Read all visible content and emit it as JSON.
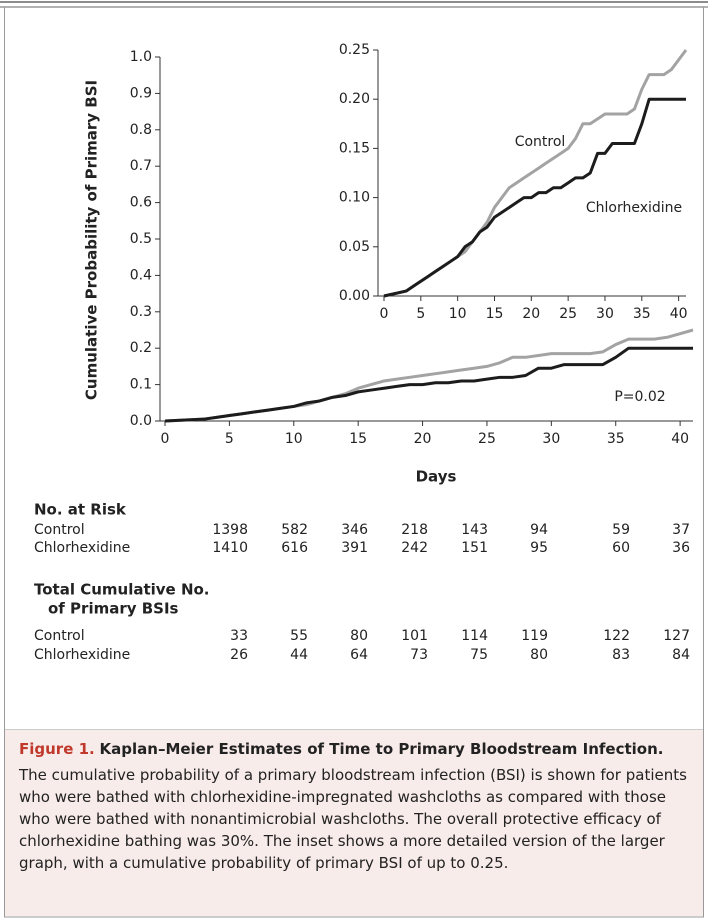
{
  "chart_data": [
    {
      "type": "line",
      "ylabel": "Cumulative Probability of Primary BSI",
      "xlabel": "Days",
      "x": [
        0,
        3,
        4,
        5,
        6,
        7,
        8,
        9,
        10,
        11,
        12,
        13,
        14,
        15,
        16,
        17,
        18,
        19,
        20,
        21,
        22,
        23,
        24,
        25,
        26,
        27,
        28,
        29,
        30,
        31,
        32,
        33,
        34,
        35,
        36,
        37,
        38,
        39,
        40,
        41
      ],
      "series": [
        {
          "name": "Control",
          "color": "#a3a3a3",
          "values": [
            0,
            0.005,
            0.01,
            0.015,
            0.02,
            0.025,
            0.03,
            0.035,
            0.04,
            0.045,
            0.055,
            0.065,
            0.075,
            0.09,
            0.1,
            0.11,
            0.115,
            0.12,
            0.125,
            0.13,
            0.135,
            0.14,
            0.145,
            0.15,
            0.16,
            0.175,
            0.175,
            0.18,
            0.185,
            0.185,
            0.185,
            0.185,
            0.19,
            0.21,
            0.225,
            0.225,
            0.225,
            0.23,
            0.24,
            0.25
          ]
        },
        {
          "name": "Chlorhexidine",
          "color": "#1c1c1c",
          "values": [
            0,
            0.005,
            0.01,
            0.015,
            0.02,
            0.025,
            0.03,
            0.035,
            0.04,
            0.05,
            0.055,
            0.065,
            0.07,
            0.08,
            0.085,
            0.09,
            0.095,
            0.1,
            0.1,
            0.105,
            0.105,
            0.11,
            0.11,
            0.115,
            0.12,
            0.12,
            0.125,
            0.145,
            0.145,
            0.155,
            0.155,
            0.155,
            0.155,
            0.175,
            0.2,
            0.2,
            0.2,
            0.2,
            0.2,
            0.2
          ]
        }
      ],
      "xlim": [
        0,
        41
      ],
      "xticks": [
        0,
        5,
        10,
        15,
        20,
        25,
        30,
        35,
        40
      ],
      "ylim": [
        0,
        1
      ],
      "yticks": [
        {
          "value": 0,
          "label": "0.0"
        },
        0.1,
        0.2,
        0.3,
        0.4,
        0.5,
        0.6,
        0.7,
        0.8,
        0.9,
        {
          "value": 1,
          "label": "1.0"
        }
      ],
      "annotations": [
        {
          "text": "P=0.02"
        }
      ]
    },
    {
      "type": "line",
      "x": [
        0,
        3,
        4,
        5,
        6,
        7,
        8,
        9,
        10,
        11,
        12,
        13,
        14,
        15,
        16,
        17,
        18,
        19,
        20,
        21,
        22,
        23,
        24,
        25,
        26,
        27,
        28,
        29,
        30,
        31,
        32,
        33,
        34,
        35,
        36,
        37,
        38,
        39,
        40,
        41
      ],
      "series": [
        {
          "name": "Control",
          "color": "#a3a3a3",
          "values": [
            0,
            0.005,
            0.01,
            0.015,
            0.02,
            0.025,
            0.03,
            0.035,
            0.04,
            0.045,
            0.055,
            0.065,
            0.075,
            0.09,
            0.1,
            0.11,
            0.115,
            0.12,
            0.125,
            0.13,
            0.135,
            0.14,
            0.145,
            0.15,
            0.16,
            0.175,
            0.175,
            0.18,
            0.185,
            0.185,
            0.185,
            0.185,
            0.19,
            0.21,
            0.225,
            0.225,
            0.225,
            0.23,
            0.24,
            0.25
          ]
        },
        {
          "name": "Chlorhexidine",
          "color": "#1c1c1c",
          "values": [
            0,
            0.005,
            0.01,
            0.015,
            0.02,
            0.025,
            0.03,
            0.035,
            0.04,
            0.05,
            0.055,
            0.065,
            0.07,
            0.08,
            0.085,
            0.09,
            0.095,
            0.1,
            0.1,
            0.105,
            0.105,
            0.11,
            0.11,
            0.115,
            0.12,
            0.12,
            0.125,
            0.145,
            0.145,
            0.155,
            0.155,
            0.155,
            0.155,
            0.175,
            0.2,
            0.2,
            0.2,
            0.2,
            0.2,
            0.2
          ]
        }
      ],
      "xlim": [
        0,
        41
      ],
      "xticks": [
        0,
        5,
        10,
        15,
        20,
        25,
        30,
        35,
        40
      ],
      "ylim": [
        0,
        0.25
      ],
      "yticks": [
        {
          "value": 0,
          "label": "0.00"
        },
        0.05,
        {
          "value": 0.1,
          "label": "0.10"
        },
        0.15,
        {
          "value": 0.2,
          "label": "0.20"
        },
        0.25
      ]
    }
  ],
  "risk_table": {
    "title": "No. at Risk",
    "rows": [
      {
        "label": "Control",
        "values": [
          1398,
          582,
          346,
          218,
          143,
          94,
          59,
          37
        ]
      },
      {
        "label": "Chlorhexidine",
        "values": [
          1410,
          616,
          391,
          242,
          151,
          95,
          60,
          36
        ]
      }
    ]
  },
  "bsi_table": {
    "title_lines": [
      "Total Cumulative No.",
      "of Primary BSIs"
    ],
    "rows": [
      {
        "label": "Control",
        "values": [
          33,
          55,
          80,
          101,
          114,
          119,
          122,
          127
        ]
      },
      {
        "label": "Chlorhexidine",
        "values": [
          26,
          44,
          64,
          73,
          75,
          80,
          83,
          84
        ]
      }
    ]
  },
  "caption": {
    "label": "Figure 1.",
    "title": "Kaplan–Meier Estimates of Time to Primary Bloodstream Infection.",
    "text": "The cumulative probability of a primary bloodstream infection (BSI) is shown for patients who were bathed with chlorhexidine-impregnated washcloths as compared with those who were bathed with nonantimicrobial washcloths. The overall protective efficacy of chlorhexidine bathing was 30%. The inset shows a more detailed version of the larger graph, with a cumulative probability of primary BSI of up to 0.25."
  }
}
